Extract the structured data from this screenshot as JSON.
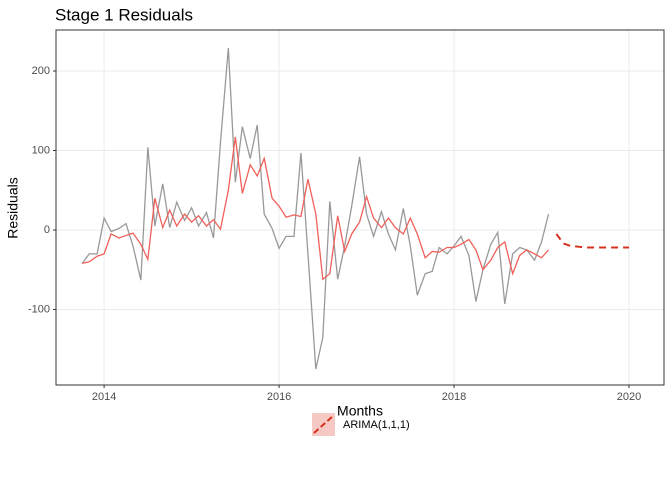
{
  "chart_data": {
    "type": "line",
    "title": "Stage 1 Residuals",
    "x_label": "Months",
    "y_label": "Residuals",
    "x": [
      2013.75,
      2013.83,
      2013.92,
      2014.0,
      2014.08,
      2014.17,
      2014.25,
      2014.33,
      2014.42,
      2014.5,
      2014.58,
      2014.67,
      2014.75,
      2014.83,
      2014.92,
      2015.0,
      2015.08,
      2015.17,
      2015.25,
      2015.33,
      2015.42,
      2015.5,
      2015.58,
      2015.67,
      2015.75,
      2015.83,
      2015.92,
      2016.0,
      2016.08,
      2016.17,
      2016.25,
      2016.33,
      2016.42,
      2016.5,
      2016.58,
      2016.67,
      2016.75,
      2016.83,
      2016.92,
      2017.0,
      2017.08,
      2017.17,
      2017.25,
      2017.33,
      2017.42,
      2017.5,
      2017.58,
      2017.67,
      2017.75,
      2017.83,
      2017.92,
      2018.0,
      2018.08,
      2018.17,
      2018.25,
      2018.33,
      2018.42,
      2018.5,
      2018.58,
      2018.67,
      2018.75,
      2018.83,
      2018.92,
      2019.0,
      2019.08
    ],
    "series": [
      {
        "color": "#999999",
        "values": [
          -42,
          -30,
          -30,
          15,
          -2,
          2,
          8,
          -20,
          -63,
          104,
          5,
          58,
          3,
          35,
          12,
          28,
          5,
          22,
          -10,
          110,
          229,
          60,
          130,
          90,
          132,
          20,
          2,
          -23,
          -8,
          -8,
          97,
          -30,
          -175,
          -135,
          36,
          -62,
          -20,
          30,
          92,
          20,
          -8,
          23,
          -5,
          -25,
          27,
          -20,
          -82,
          -55,
          -52,
          -22,
          -30,
          -20,
          -8,
          -32,
          -90,
          -50,
          -18,
          -3,
          -93,
          -30,
          -22,
          -25,
          -38,
          -15,
          20
        ]
      },
      {
        "color": "#f0605a",
        "values": [
          -42,
          -40,
          -33,
          -30,
          -5,
          -10,
          -7,
          -4,
          -18,
          -37,
          40,
          3,
          25,
          5,
          20,
          10,
          18,
          5,
          13,
          1,
          50,
          117,
          46,
          82,
          68,
          90,
          40,
          30,
          16,
          19,
          17,
          64,
          20,
          -62,
          -55,
          18,
          -27,
          -5,
          10,
          42,
          15,
          3,
          15,
          3,
          -5,
          15,
          -5,
          -35,
          -27,
          -28,
          -22,
          -22,
          -18,
          -12,
          -25,
          -50,
          -38,
          -22,
          -15,
          -55,
          -32,
          -25,
          -30,
          -35,
          -25
        ]
      }
    ],
    "forecast": {
      "name": "ARIMA(1,1,1)",
      "color": "#d7301f",
      "x": [
        2019.17,
        2019.25,
        2019.33,
        2019.42,
        2019.5,
        2019.58,
        2019.67,
        2019.75,
        2019.83,
        2019.92,
        2020.0
      ],
      "values": [
        -5,
        -17,
        -20,
        -21,
        -22,
        -22,
        -22,
        -22,
        -22,
        -22,
        -22
      ]
    },
    "xlim": [
      2013.45,
      2020.4
    ],
    "ylim": [
      -195,
      251.6
    ],
    "xticks": [
      2014,
      2016,
      2018,
      2020
    ],
    "yticks": [
      -100,
      0,
      100,
      200
    ],
    "grid": true
  }
}
